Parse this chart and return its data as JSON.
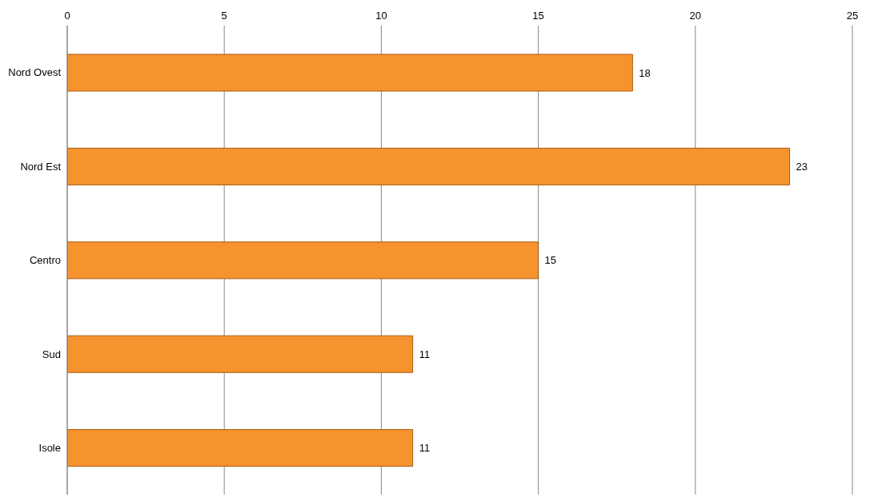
{
  "chart_data": {
    "type": "bar",
    "orientation": "horizontal",
    "categories": [
      "Nord Ovest",
      "Nord Est",
      "Centro",
      "Sud",
      "Isole"
    ],
    "values": [
      18,
      23,
      15,
      11,
      11
    ],
    "color": "#f7932f",
    "xlim": [
      0,
      25
    ],
    "xticks": [
      0,
      5,
      10,
      15,
      20,
      25
    ],
    "grid": "x",
    "data_labels": true
  }
}
